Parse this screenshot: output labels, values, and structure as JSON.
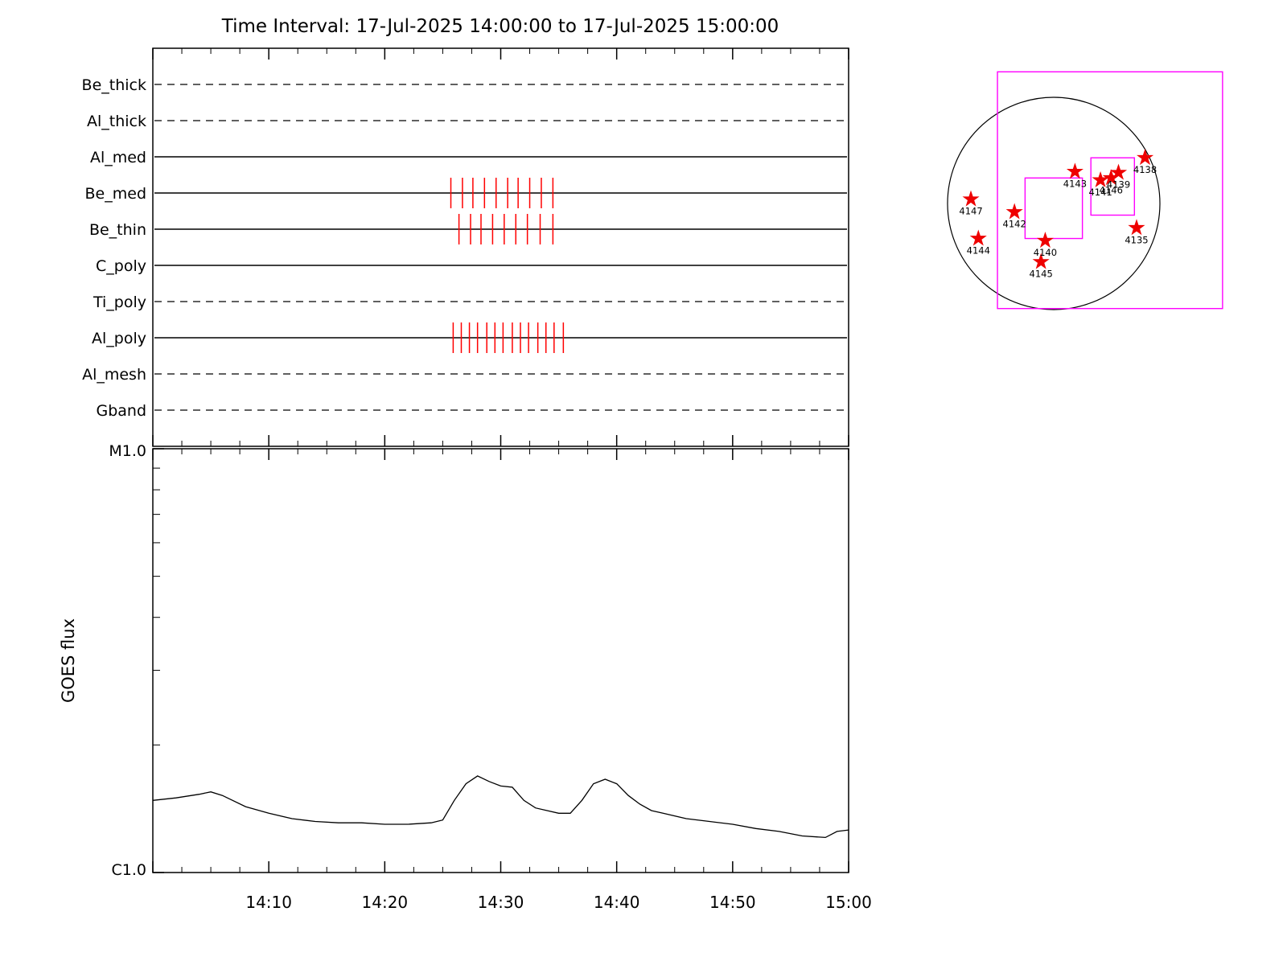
{
  "title": "Time Interval: 17-Jul-2025 14:00:00 to 17-Jul-2025 15:00:00",
  "colors": {
    "axis": "#000000",
    "exposure_tick": "#ff0000",
    "fov_box": "#ff00ff",
    "star": "#ee0000",
    "background": "#ffffff"
  },
  "chart_data": [
    {
      "type": "timeline",
      "name": "xrt-filter-exposure-timeline",
      "x_start_time": "14:00",
      "x_end_time": "15:00",
      "x_range_minutes": [
        0,
        60
      ],
      "rows": [
        {
          "label": "Be_thick",
          "line_style": "dashed",
          "exposure_minutes": []
        },
        {
          "label": "Al_thick",
          "line_style": "dashed",
          "exposure_minutes": []
        },
        {
          "label": "Al_med",
          "line_style": "solid",
          "exposure_minutes": []
        },
        {
          "label": "Be_med",
          "line_style": "solid",
          "exposure_minutes": [
            25.7,
            26.7,
            27.6,
            28.6,
            29.6,
            30.6,
            31.5,
            32.5,
            33.5,
            34.5
          ]
        },
        {
          "label": "Be_thin",
          "line_style": "solid",
          "exposure_minutes": [
            26.4,
            27.4,
            28.3,
            29.3,
            30.3,
            31.3,
            32.3,
            33.4,
            34.5
          ]
        },
        {
          "label": "C_poly",
          "line_style": "solid",
          "exposure_minutes": []
        },
        {
          "label": "Ti_poly",
          "line_style": "dashed",
          "exposure_minutes": []
        },
        {
          "label": "Al_poly",
          "line_style": "solid",
          "exposure_minutes": [
            25.9,
            26.6,
            27.3,
            28.0,
            28.8,
            29.5,
            30.2,
            31.0,
            31.7,
            32.4,
            33.2,
            33.9,
            34.6,
            35.4
          ]
        },
        {
          "label": "Al_mesh",
          "line_style": "dashed",
          "exposure_minutes": []
        },
        {
          "label": "Gband",
          "line_style": "dashed",
          "exposure_minutes": []
        }
      ]
    },
    {
      "type": "line",
      "name": "goes-flux-lightcurve",
      "ylabel": "GOES flux",
      "y_scale": "log",
      "y_top_label": "M1.0",
      "y_bottom_label": "C1.0",
      "ylim_c_units": [
        1,
        10
      ],
      "x_tick_minutes": [
        10,
        20,
        30,
        40,
        50,
        60
      ],
      "x_tick_labels": [
        "14:10",
        "14:20",
        "14:30",
        "14:40",
        "14:50",
        "15:00"
      ],
      "grid": false,
      "series": [
        {
          "name": "GOES flux",
          "t_minutes": [
            0,
            2,
            4,
            5,
            6,
            8,
            10,
            12,
            14,
            16,
            18,
            20,
            22,
            24,
            25,
            26,
            27,
            28,
            29,
            30,
            31,
            32,
            33,
            34,
            35,
            36,
            37,
            38,
            39,
            40,
            41,
            42,
            43,
            44,
            46,
            48,
            50,
            52,
            54,
            56,
            58,
            59,
            60
          ],
          "flux_c_units": [
            1.48,
            1.5,
            1.53,
            1.55,
            1.52,
            1.43,
            1.38,
            1.34,
            1.32,
            1.31,
            1.31,
            1.3,
            1.3,
            1.31,
            1.33,
            1.48,
            1.62,
            1.69,
            1.64,
            1.6,
            1.59,
            1.48,
            1.42,
            1.4,
            1.38,
            1.38,
            1.48,
            1.62,
            1.66,
            1.62,
            1.52,
            1.45,
            1.4,
            1.38,
            1.34,
            1.32,
            1.3,
            1.27,
            1.25,
            1.22,
            1.21,
            1.25,
            1.26
          ]
        }
      ]
    },
    {
      "type": "scatter",
      "name": "solar-disk-active-region-map",
      "coordinate_units": "solar radii from disk center, y positive toward south",
      "active_regions": [
        {
          "label": "4147",
          "x": -0.78,
          "y": -0.04
        },
        {
          "label": "4142",
          "x": -0.37,
          "y": 0.08
        },
        {
          "label": "4144",
          "x": -0.71,
          "y": 0.33
        },
        {
          "label": "4145",
          "x": -0.12,
          "y": 0.55
        },
        {
          "label": "4140",
          "x": -0.08,
          "y": 0.35
        },
        {
          "label": "4143",
          "x": 0.2,
          "y": -0.3
        },
        {
          "label": "4141",
          "x": 0.44,
          "y": -0.22
        },
        {
          "label": "4146",
          "x": 0.54,
          "y": -0.24
        },
        {
          "label": "4139",
          "x": 0.61,
          "y": -0.29
        },
        {
          "label": "4138",
          "x": 0.86,
          "y": -0.43
        },
        {
          "label": "4135",
          "x": 0.78,
          "y": 0.23
        }
      ],
      "fov_boxes": [
        {
          "x1": -0.53,
          "y1": -1.24,
          "x2": 1.59,
          "y2": 0.99
        },
        {
          "x1": -0.27,
          "y1": -0.24,
          "x2": 0.27,
          "y2": 0.33
        },
        {
          "x1": 0.35,
          "y1": -0.43,
          "x2": 0.76,
          "y2": 0.11
        }
      ]
    }
  ]
}
